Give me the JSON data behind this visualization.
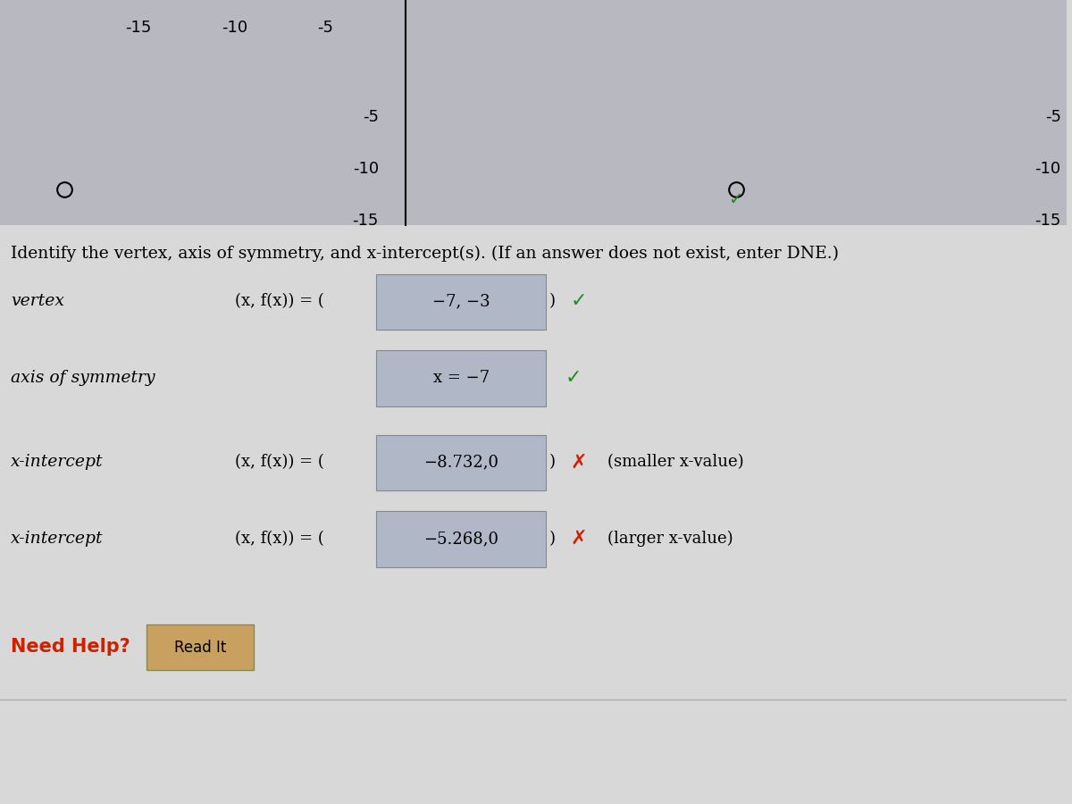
{
  "background_color": "#d8d8d8",
  "top_bg": "#b8b8c0",
  "instruction_text": "Identify the vertex, axis of symmetry, and x-intercept(s). (If an answer does not exist, enter DNE.)",
  "instruction_fontsize": 13.5,
  "rows": [
    {
      "label": "vertex",
      "prefix": "(x, f(x)) = (",
      "input_text": "−7, −3",
      "suffix": ")",
      "has_check": true,
      "check_color": "#228B22",
      "has_x_mark": false,
      "extra_text": "",
      "input_bg": "#b0b8c8"
    },
    {
      "label": "axis of symmetry",
      "prefix": "",
      "input_text": "x = −7",
      "suffix": "",
      "has_check": true,
      "check_color": "#228B22",
      "has_x_mark": false,
      "extra_text": "",
      "input_bg": "#b0b8c8"
    },
    {
      "label": "x-intercept",
      "prefix": "(x, f(x)) = (",
      "input_text": "−8.732,0",
      "suffix": ")",
      "has_check": false,
      "check_color": "",
      "has_x_mark": true,
      "extra_text": "(smaller x-value)",
      "input_bg": "#b0b8c8"
    },
    {
      "label": "x-intercept",
      "prefix": "(x, f(x)) = (",
      "input_text": "−5.268,0",
      "suffix": ")",
      "has_check": false,
      "check_color": "",
      "has_x_mark": true,
      "extra_text": "(larger x-value)",
      "input_bg": "#b0b8c8"
    }
  ],
  "need_help_color": "#cc2200",
  "need_help_text": "Need Help?",
  "read_it_text": "Read It",
  "read_it_bg": "#c8a060",
  "axis_ticks": [
    "-5",
    "-10",
    "-15"
  ],
  "right_axis_ticks": [
    "-5",
    "-10",
    "-15"
  ],
  "top_x_labels": [
    "-15",
    "-10",
    "-5"
  ]
}
